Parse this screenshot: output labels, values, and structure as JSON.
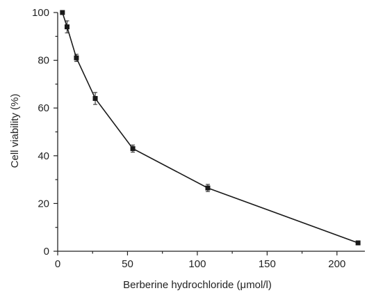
{
  "chart_data": {
    "type": "line",
    "title": "",
    "xlabel": "Berberine hydrochloride (μmol/l)",
    "ylabel": "Cell viability (%)",
    "xlim": [
      0,
      220
    ],
    "ylim": [
      0,
      100
    ],
    "x_ticks": [
      0,
      50,
      100,
      150,
      200
    ],
    "y_ticks": [
      0,
      20,
      40,
      60,
      80,
      100
    ],
    "grid": false,
    "legend": "none",
    "series": [
      {
        "x": [
          3.4,
          6.7,
          13.4,
          26.9,
          53.8,
          107.5,
          215.1
        ],
        "y": [
          100,
          94,
          81,
          64,
          43,
          26.5,
          3.5
        ],
        "error": [
          0.5,
          2.5,
          1.5,
          2.5,
          1.5,
          1.5,
          0.5
        ],
        "marker": "square",
        "color": "#1a1a1a"
      }
    ]
  }
}
